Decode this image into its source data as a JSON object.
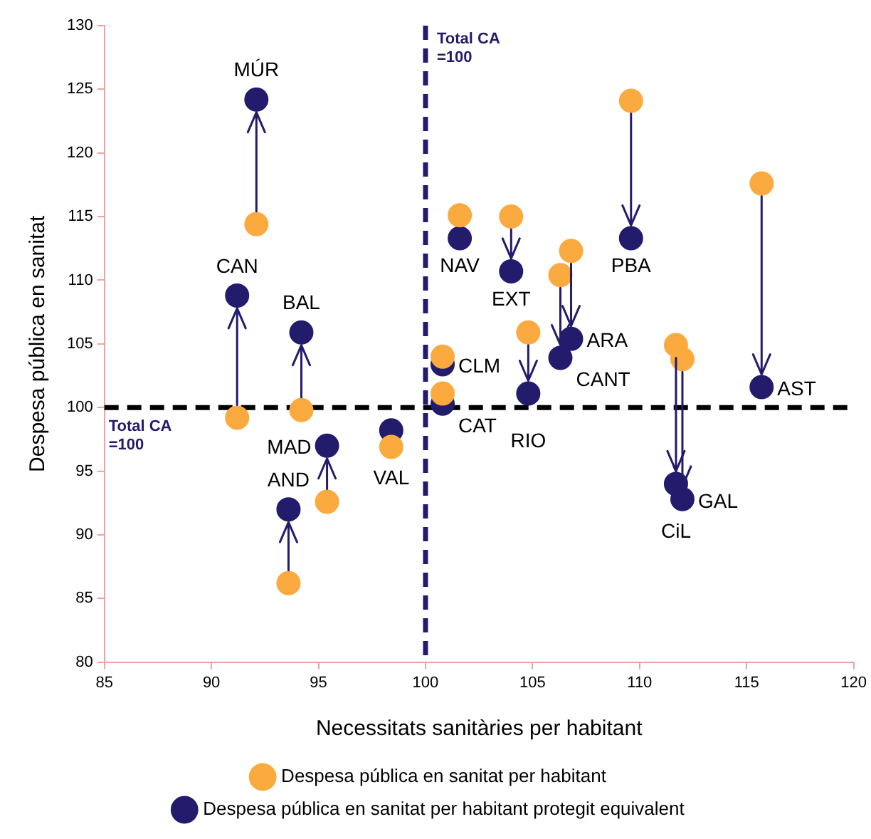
{
  "chart_data": {
    "type": "scatter",
    "xlabel": "Necessitats sanitàries per habitant",
    "ylabel": "Despesa pública en sanitat",
    "xlim": [
      85,
      120
    ],
    "xticks": [
      85,
      90,
      95,
      100,
      105,
      110,
      115,
      120
    ],
    "ylim": [
      80,
      130
    ],
    "yticks": [
      80,
      85,
      90,
      95,
      100,
      105,
      110,
      115,
      120,
      125,
      130
    ],
    "grid": false,
    "legend": "bottom",
    "marker": "circle",
    "x": [
      92.1,
      91.2,
      94.2,
      93.6,
      95.4,
      98.4,
      100.8,
      100.8,
      101.6,
      104.0,
      109.6,
      115.7,
      106.8,
      106.3,
      104.8,
      111.7,
      112.0
    ],
    "series": [
      {
        "name": "Despesa pública en sanitat per habitant",
        "color": "#fbaa3f",
        "values": [
          114.4,
          99.2,
          99.8,
          86.2,
          92.6,
          96.9,
          104.0,
          101.1,
          115.1,
          115.0,
          124.1,
          117.6,
          112.3,
          110.4,
          105.9,
          104.9,
          103.8
        ]
      },
      {
        "name": "Despesa pública en sanitat per habitant protegit equivalent",
        "color": "#231b6b",
        "values": [
          124.2,
          108.8,
          105.9,
          92.0,
          97.0,
          98.2,
          103.4,
          100.3,
          113.3,
          110.7,
          113.3,
          101.6,
          105.4,
          103.9,
          101.1,
          94.0,
          92.8
        ]
      }
    ],
    "ref_lines": [
      {
        "axis": "x",
        "value": 100,
        "label": "Total CA =100",
        "color": "#231b6b",
        "line_style": "dashed"
      },
      {
        "axis": "y",
        "value": 100,
        "label": "Total CA =100",
        "color": "#000000",
        "line_style": "dashed"
      }
    ],
    "annotations": [
      {
        "text": "MÚR",
        "x": 92.1,
        "y": 124.2
      },
      {
        "text": "CAN",
        "x": 91.2,
        "y": 108.8
      },
      {
        "text": "BAL",
        "x": 94.2,
        "y": 105.9
      },
      {
        "text": "AND",
        "x": 93.6,
        "y": 92.0
      },
      {
        "text": "MAD",
        "x": 95.4,
        "y": 97.0
      },
      {
        "text": "VAL",
        "x": 98.4,
        "y": 98.2
      },
      {
        "text": "CLM",
        "x": 100.8,
        "y": 103.4
      },
      {
        "text": "CAT",
        "x": 100.8,
        "y": 100.3
      },
      {
        "text": "NAV",
        "x": 101.6,
        "y": 113.3
      },
      {
        "text": "EXT",
        "x": 104.0,
        "y": 110.7
      },
      {
        "text": "PBA",
        "x": 109.6,
        "y": 113.3
      },
      {
        "text": "AST",
        "x": 115.7,
        "y": 101.6
      },
      {
        "text": "ARA",
        "x": 106.8,
        "y": 105.4
      },
      {
        "text": "CANT",
        "x": 106.3,
        "y": 103.9
      },
      {
        "text": "RIO",
        "x": 104.8,
        "y": 101.1
      },
      {
        "text": "CiL",
        "x": 111.7,
        "y": 94.0
      },
      {
        "text": "GAL",
        "x": 112.0,
        "y": 92.8
      }
    ]
  }
}
